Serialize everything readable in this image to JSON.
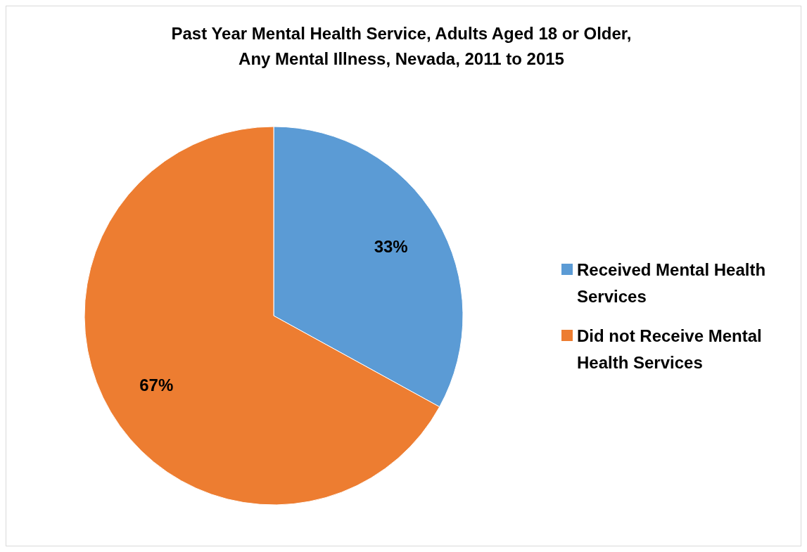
{
  "chart_data": {
    "type": "pie",
    "title": "Past Year Mental Health Service, Adults Aged 18 or Older,\nAny Mental Illness, Nevada, 2011 to 2015",
    "categories": [
      "Received Mental Health Services",
      "Did not Receive Mental Health Services"
    ],
    "values": [
      33,
      67
    ],
    "colors": [
      "#5b9bd5",
      "#ed7d31"
    ],
    "value_labels": [
      "33%",
      "67%"
    ],
    "legend": "right"
  }
}
